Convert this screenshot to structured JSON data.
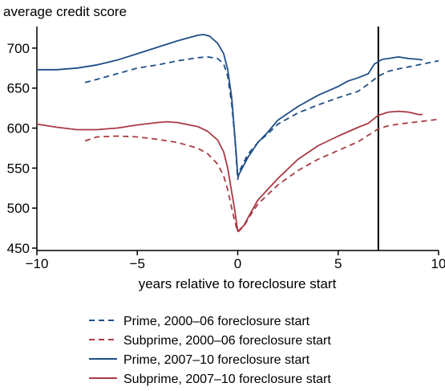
{
  "chart_data": {
    "type": "line",
    "title": "",
    "ylabel": "average credit score",
    "xlabel": "years relative to foreclosure start",
    "xlim": [
      -10,
      10
    ],
    "ylim": [
      447,
      727
    ],
    "x_ticks": [
      -10,
      -5,
      0,
      5,
      10
    ],
    "x_tick_labels": [
      "−10",
      "−5",
      "0",
      "5",
      "10"
    ],
    "y_ticks": [
      450,
      500,
      550,
      600,
      650,
      700
    ],
    "y_tick_labels": [
      "450",
      "500",
      "550",
      "600",
      "650",
      "700"
    ],
    "grid": false,
    "legend_position": "bottom",
    "reference_line_x": 7,
    "series": [
      {
        "name": "Prime, 2000–06 foreclosure start",
        "color": "#1f4e86",
        "dash": "dashed",
        "points": [
          [
            -7.6,
            657
          ],
          [
            -7,
            661
          ],
          [
            -6,
            668
          ],
          [
            -5,
            675
          ],
          [
            -4,
            679
          ],
          [
            -3,
            684
          ],
          [
            -2,
            688
          ],
          [
            -1.5,
            689
          ],
          [
            -1,
            687
          ],
          [
            -0.7,
            680
          ],
          [
            -0.5,
            665
          ],
          [
            -0.3,
            630
          ],
          [
            -0.15,
            590
          ],
          [
            -0.05,
            555
          ],
          [
            0,
            536
          ],
          [
            0.1,
            547
          ],
          [
            0.5,
            567
          ],
          [
            1,
            582
          ],
          [
            1.5,
            593
          ],
          [
            2,
            605
          ],
          [
            3,
            619
          ],
          [
            4,
            629
          ],
          [
            5,
            638
          ],
          [
            5.5,
            642
          ],
          [
            6,
            646
          ],
          [
            6.5,
            655
          ],
          [
            7,
            665
          ],
          [
            7.5,
            671
          ],
          [
            8,
            674
          ],
          [
            9,
            679
          ],
          [
            10,
            684
          ]
        ]
      },
      {
        "name": "Subprime, 2000–06 foreclosure start",
        "color": "#a93a44",
        "dash": "dashed",
        "points": [
          [
            -7.6,
            584
          ],
          [
            -7,
            589
          ],
          [
            -6,
            590
          ],
          [
            -5,
            589
          ],
          [
            -4,
            586
          ],
          [
            -3,
            582
          ],
          [
            -2,
            575
          ],
          [
            -1.5,
            568
          ],
          [
            -1,
            555
          ],
          [
            -0.7,
            540
          ],
          [
            -0.5,
            523
          ],
          [
            -0.3,
            500
          ],
          [
            -0.15,
            484
          ],
          [
            0,
            470
          ],
          [
            0.3,
            477
          ],
          [
            0.6,
            490
          ],
          [
            1,
            505
          ],
          [
            2,
            529
          ],
          [
            3,
            547
          ],
          [
            4,
            561
          ],
          [
            5,
            572
          ],
          [
            6,
            583
          ],
          [
            6.5,
            591
          ],
          [
            7,
            599
          ],
          [
            7.5,
            603
          ],
          [
            8,
            605
          ],
          [
            9,
            608
          ],
          [
            10,
            611
          ]
        ]
      },
      {
        "name": "Prime, 2007–10 foreclosure start",
        "color": "#1f4e86",
        "dash": "solid",
        "points": [
          [
            -10,
            673
          ],
          [
            -9,
            673
          ],
          [
            -8,
            675
          ],
          [
            -7,
            679
          ],
          [
            -6,
            685
          ],
          [
            -5,
            693
          ],
          [
            -4,
            701
          ],
          [
            -3,
            709
          ],
          [
            -2,
            716
          ],
          [
            -1.7,
            717
          ],
          [
            -1.4,
            715
          ],
          [
            -1,
            706
          ],
          [
            -0.7,
            693
          ],
          [
            -0.5,
            673
          ],
          [
            -0.3,
            638
          ],
          [
            -0.15,
            592
          ],
          [
            -0.05,
            560
          ],
          [
            0,
            540
          ],
          [
            0.1,
            544
          ],
          [
            0.5,
            563
          ],
          [
            1,
            582
          ],
          [
            1.5,
            595
          ],
          [
            2,
            610
          ],
          [
            3,
            627
          ],
          [
            4,
            641
          ],
          [
            5,
            652
          ],
          [
            5.5,
            659
          ],
          [
            6,
            663
          ],
          [
            6.5,
            668
          ],
          [
            6.8,
            680
          ],
          [
            7.2,
            686
          ],
          [
            7.5,
            687
          ],
          [
            8,
            689
          ],
          [
            8.5,
            687
          ],
          [
            9,
            686
          ],
          [
            9.2,
            685
          ]
        ]
      },
      {
        "name": "Subprime, 2007–10 foreclosure start",
        "color": "#a93a44",
        "dash": "solid",
        "points": [
          [
            -10,
            605
          ],
          [
            -9,
            601
          ],
          [
            -8,
            598
          ],
          [
            -7,
            598
          ],
          [
            -6,
            600
          ],
          [
            -5,
            604
          ],
          [
            -4,
            607
          ],
          [
            -3.5,
            608
          ],
          [
            -3,
            607
          ],
          [
            -2,
            602
          ],
          [
            -1.5,
            596
          ],
          [
            -1,
            585
          ],
          [
            -0.7,
            570
          ],
          [
            -0.5,
            550
          ],
          [
            -0.3,
            520
          ],
          [
            -0.15,
            498
          ],
          [
            0,
            471
          ],
          [
            0.3,
            478
          ],
          [
            0.6,
            492
          ],
          [
            1,
            510
          ],
          [
            2,
            537
          ],
          [
            3,
            561
          ],
          [
            4,
            578
          ],
          [
            5,
            590
          ],
          [
            6,
            601
          ],
          [
            6.5,
            606
          ],
          [
            7,
            616
          ],
          [
            7.5,
            620
          ],
          [
            8,
            621
          ],
          [
            8.5,
            620
          ],
          [
            9,
            617
          ],
          [
            9.2,
            617
          ]
        ]
      }
    ]
  }
}
